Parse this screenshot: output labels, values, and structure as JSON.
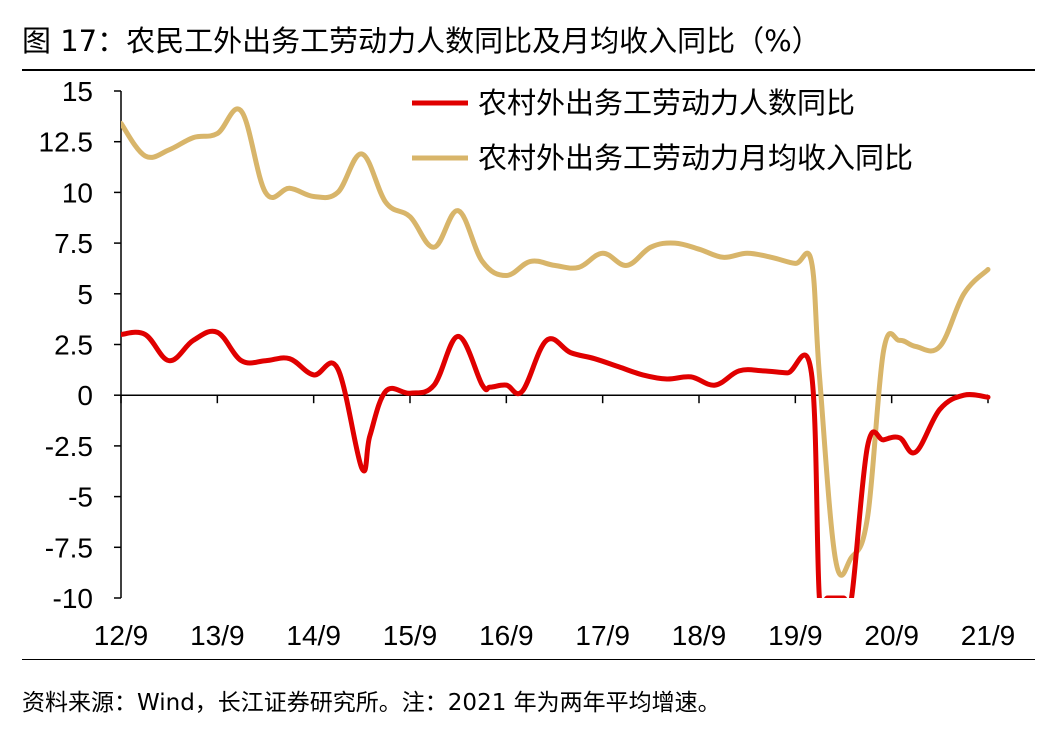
{
  "header": {
    "title": "图 17：农民工外出务工劳动力人数同比及月均收入同比（%）"
  },
  "footer": {
    "source": "资料来源：Wind，长江证券研究所。注：2021 年为两年平均增速。"
  },
  "colors": {
    "series_people": "#e00000",
    "series_income": "#d8b56a",
    "axis": "#000000"
  },
  "chart_data": {
    "type": "line",
    "title": "农民工外出务工劳动力人数同比及月均收入同比（%）",
    "xlabel": "",
    "ylabel": "",
    "ylim": [
      -10,
      15
    ],
    "yticks": [
      15,
      12.5,
      10,
      7.5,
      5,
      2.5,
      0,
      -2.5,
      -5,
      -7.5,
      -10
    ],
    "ytick_labels": [
      "15",
      "12.5",
      "10",
      "7.5",
      "5",
      "2.5",
      "0",
      "-2.5",
      "-5",
      "-7.5",
      "-10"
    ],
    "xlim": [
      0,
      108
    ],
    "xticks": [
      0,
      12,
      24,
      36,
      48,
      60,
      72,
      84,
      96,
      108
    ],
    "xtick_labels": [
      "12/9",
      "13/9",
      "14/9",
      "15/9",
      "16/9",
      "17/9",
      "18/9",
      "19/9",
      "20/9",
      "21/9"
    ],
    "legend_position": "top-right",
    "grid": false,
    "series": [
      {
        "name": "农村外出务工劳动力人数同比",
        "color": "#e00000",
        "x": [
          0,
          3,
          6,
          9,
          12,
          15,
          18,
          21,
          24,
          27,
          30,
          31,
          33,
          36,
          39,
          42,
          45,
          46,
          48,
          50,
          53,
          56,
          59,
          62,
          65,
          68,
          71,
          74,
          77,
          80,
          83,
          86,
          87,
          88,
          90,
          91,
          93,
          95,
          97,
          99,
          102,
          105,
          108
        ],
        "values": [
          3.0,
          3.0,
          1.7,
          2.7,
          3.1,
          1.7,
          1.7,
          1.8,
          1.0,
          1.3,
          -3.6,
          -2.0,
          0.2,
          0.1,
          0.5,
          2.9,
          0.5,
          0.4,
          0.5,
          0.2,
          2.7,
          2.1,
          1.8,
          1.4,
          1.0,
          0.8,
          0.9,
          0.5,
          1.2,
          1.2,
          1.1,
          1.1,
          -10.0,
          -10.0,
          -10.0,
          -10.0,
          -2.5,
          -2.2,
          -2.1,
          -2.8,
          -0.7,
          0.0,
          -0.1
        ]
      },
      {
        "name": "农村外出务工劳动力月均收入同比",
        "color": "#d8b56a",
        "x": [
          0,
          3,
          6,
          9,
          12,
          15,
          18,
          21,
          24,
          27,
          30,
          33,
          36,
          39,
          42,
          45,
          48,
          51,
          54,
          57,
          60,
          63,
          66,
          69,
          72,
          75,
          78,
          81,
          84,
          86,
          87,
          89,
          91,
          93,
          95,
          97,
          99,
          102,
          105,
          108
        ],
        "values": [
          13.4,
          11.8,
          12.1,
          12.7,
          12.9,
          14.0,
          10.0,
          10.2,
          9.8,
          10.0,
          11.9,
          9.5,
          8.8,
          7.3,
          9.1,
          6.6,
          5.9,
          6.6,
          6.4,
          6.3,
          7.0,
          6.4,
          7.3,
          7.5,
          7.2,
          6.8,
          7.0,
          6.8,
          6.5,
          6.6,
          1.0,
          -8.1,
          -8.0,
          -6.0,
          2.2,
          2.7,
          2.4,
          2.4,
          5.0,
          6.2
        ]
      }
    ]
  }
}
